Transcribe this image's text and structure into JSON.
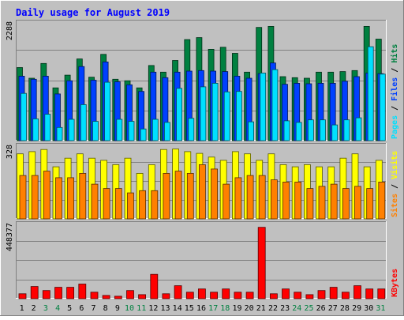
{
  "chart_data": {
    "type": "bar",
    "title": "Daily usage for August 2019",
    "categories": [
      "1",
      "2",
      "3",
      "4",
      "5",
      "6",
      "7",
      "8",
      "9",
      "10",
      "11",
      "12",
      "13",
      "14",
      "15",
      "16",
      "17",
      "18",
      "19",
      "20",
      "21",
      "22",
      "23",
      "24",
      "25",
      "26",
      "27",
      "28",
      "29",
      "30",
      "31"
    ],
    "weekend_days": [
      "3",
      "4",
      "10",
      "11",
      "17",
      "18",
      "24",
      "25",
      "31"
    ],
    "panels": [
      {
        "name": "hits-files-pages",
        "max_label": "2288",
        "ylim": [
          0,
          2288
        ],
        "legend": [
          "Pages",
          "Files",
          "Hits"
        ],
        "series": [
          {
            "name": "Hits",
            "color": "#008040",
            "values": [
              1440,
              1230,
              1520,
              1040,
              1290,
              1610,
              1250,
              1700,
              1210,
              1180,
              1040,
              1480,
              1350,
              1580,
              1990,
              2030,
              1800,
              1840,
              1720,
              1350,
              2230,
              2250,
              1260,
              1240,
              1230,
              1350,
              1350,
              1360,
              1380,
              2250,
              2000
            ]
          },
          {
            "name": "Files",
            "color": "#0040ff",
            "values": [
              1270,
              1210,
              1270,
              920,
              1180,
              1460,
              1190,
              1550,
              1160,
              1100,
              970,
              1350,
              1240,
              1350,
              1370,
              1380,
              1370,
              1360,
              1270,
              1230,
              1320,
              1530,
              1110,
              1130,
              1120,
              1130,
              1130,
              1170,
              1260,
              1330,
              1320
            ]
          },
          {
            "name": "Pages",
            "color": "#00e0ff",
            "values": [
              930,
              430,
              520,
              260,
              420,
              710,
              380,
              1150,
              420,
              380,
              230,
              420,
              360,
              1030,
              440,
              1060,
              1130,
              960,
              970,
              370,
              1330,
              1400,
              390,
              360,
              410,
              410,
              310,
              410,
              450,
              1850,
              1310
            ]
          }
        ]
      },
      {
        "name": "visits-sites",
        "max_label": "328",
        "ylim": [
          0,
          328
        ],
        "legend": [
          "Sites",
          "Visits"
        ],
        "series": [
          {
            "name": "Visits",
            "color": "#ffff00",
            "values": [
              300,
              310,
              320,
              240,
              280,
              300,
              280,
              270,
              250,
              280,
              210,
              250,
              320,
              322,
              310,
              302,
              285,
              270,
              310,
              300,
              270,
              300,
              250,
              240,
              250,
              240,
              240,
              280,
              300,
              240,
              270
            ]
          },
          {
            "name": "Sites",
            "color": "#ff8000",
            "values": [
              200,
              200,
              220,
              190,
              190,
              210,
              160,
              140,
              140,
              120,
              130,
              130,
              210,
              220,
              210,
              250,
              230,
              160,
              190,
              200,
              200,
              180,
              170,
              170,
              140,
              150,
              160,
              140,
              150,
              140,
              170
            ]
          }
        ]
      },
      {
        "name": "kbytes",
        "max_label": "448377",
        "ylim": [
          0,
          448377
        ],
        "legend": [
          "KBytes"
        ],
        "series": [
          {
            "name": "KBytes",
            "color": "#ff0000",
            "values": [
              30000,
              75000,
              50000,
              70000,
              70000,
              90000,
              40000,
              20000,
              15000,
              50000,
              25000,
              150000,
              30000,
              80000,
              40000,
              60000,
              40000,
              60000,
              40000,
              40000,
              440000,
              30000,
              60000,
              40000,
              25000,
              50000,
              70000,
              40000,
              80000,
              60000,
              60000
            ]
          }
        ]
      }
    ]
  }
}
